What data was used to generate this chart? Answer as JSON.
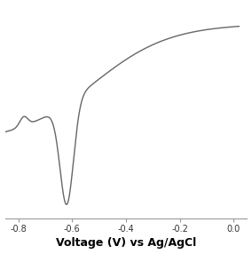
{
  "xlabel": "Voltage (V) vs Ag/AgCl",
  "xlabel_fontsize": 9,
  "xlabel_fontweight": "bold",
  "line_color": "#666666",
  "line_width": 1.0,
  "xlim": [
    -0.85,
    0.05
  ],
  "xticks": [
    -0.8,
    -0.6,
    -0.4,
    -0.2,
    0.0
  ],
  "xticklabels": [
    "-0.8",
    "-0.6",
    "-0.4",
    "-0.2",
    "0.0"
  ],
  "background_color": "#ffffff",
  "plot_bg_color": "#ffffff",
  "tick_fontsize": 7
}
